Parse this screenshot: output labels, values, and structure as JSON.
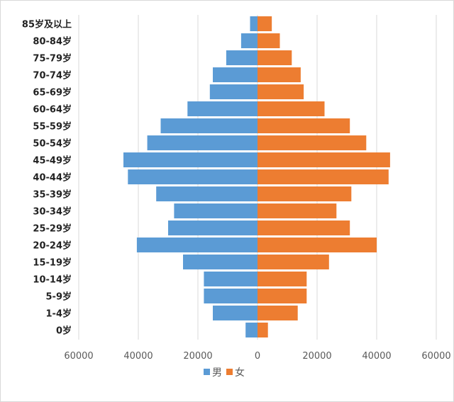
{
  "chart_data": {
    "type": "bar",
    "orientation": "horizontal-pyramid",
    "title": "",
    "xlabel": "",
    "ylabel": "",
    "xlim": [
      -60000,
      60000
    ],
    "grid": "vertical",
    "legend": "bottom-center",
    "categories": [
      "0岁",
      "1-4岁",
      "5-9岁",
      "10-14岁",
      "15-19岁",
      "20-24岁",
      "25-29岁",
      "30-34岁",
      "35-39岁",
      "40-44岁",
      "45-49岁",
      "50-54岁",
      "55-59岁",
      "60-64岁",
      "65-69岁",
      "70-74岁",
      "75-79岁",
      "80-84岁",
      "85岁及以上"
    ],
    "x_tick_values": [
      -60000,
      -40000,
      -20000,
      0,
      20000,
      40000,
      60000
    ],
    "x_tick_labels": [
      "60000",
      "40000",
      "20000",
      "0",
      "20000",
      "40000",
      "60000"
    ],
    "series": [
      {
        "name": "男",
        "color": "#5b9bd5",
        "side": "left",
        "values": [
          4000,
          15000,
          18000,
          18000,
          25000,
          40500,
          30000,
          28000,
          34000,
          43500,
          45000,
          37000,
          32500,
          23500,
          16000,
          15000,
          10500,
          5500,
          2500
        ]
      },
      {
        "name": "女",
        "color": "#ed7d31",
        "side": "right",
        "values": [
          3500,
          13500,
          16500,
          16500,
          24000,
          40000,
          31000,
          26500,
          31500,
          44000,
          44500,
          36500,
          31000,
          22500,
          15500,
          14500,
          11500,
          7500,
          4800
        ]
      }
    ]
  }
}
